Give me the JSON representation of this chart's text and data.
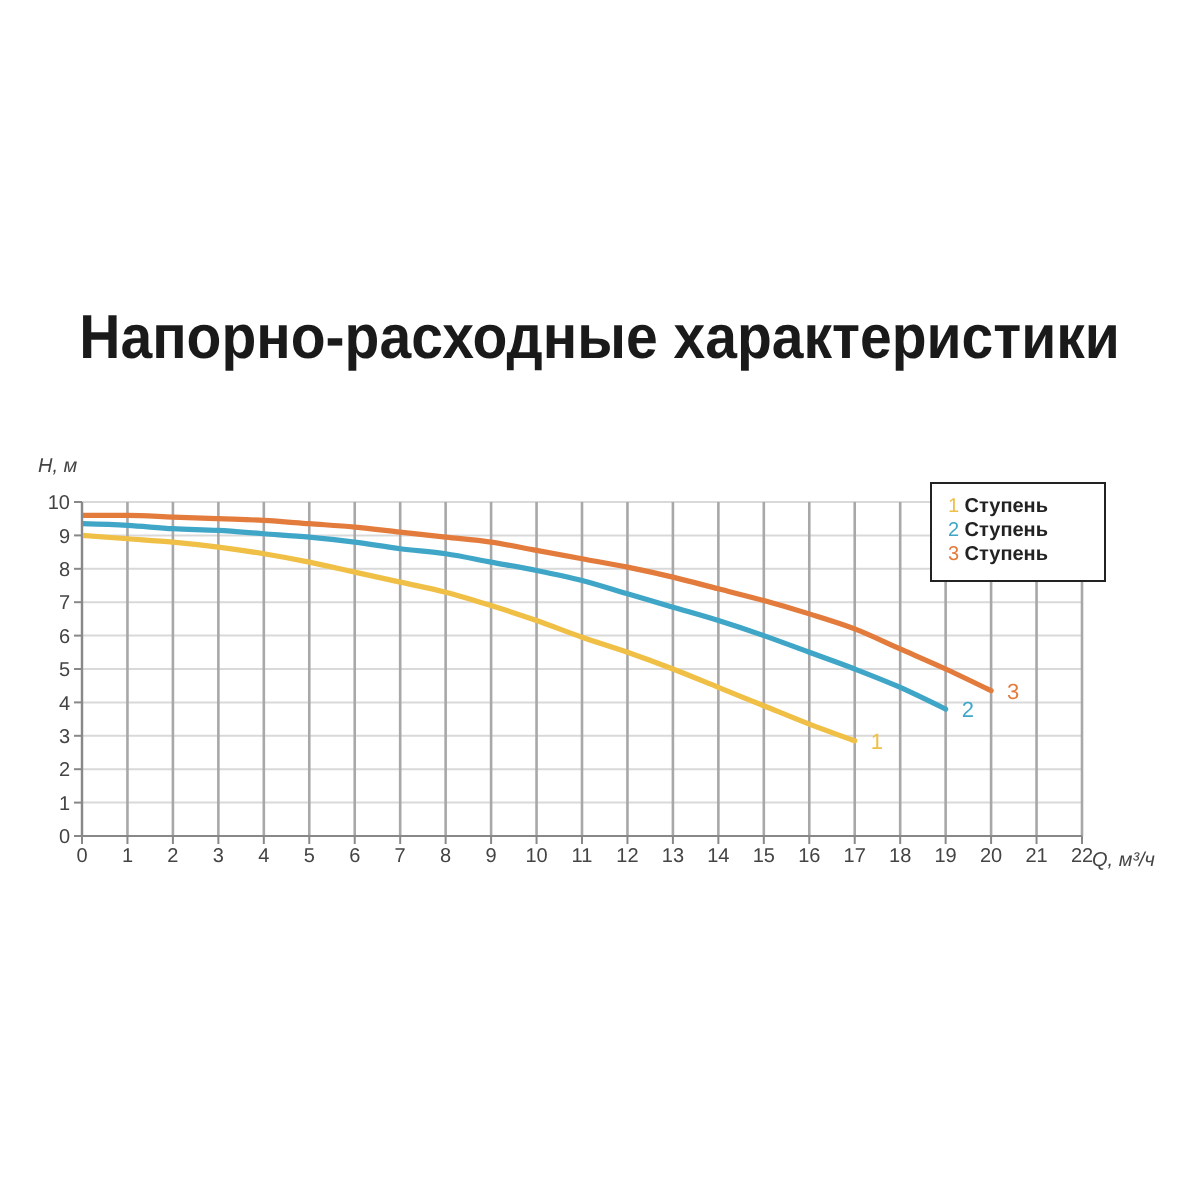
{
  "chart_data": {
    "type": "line",
    "title": "Напорно-расходные характеристики",
    "xlabel": "Q, м³/ч",
    "ylabel": "H, м",
    "series": [
      {
        "name": "1 Ступень",
        "color": "#f0bf45",
        "x": [
          0,
          1,
          2,
          3,
          4,
          5,
          6,
          7,
          8,
          9,
          10,
          11,
          12,
          13,
          14,
          15,
          16,
          17
        ],
        "values": [
          9.0,
          8.9,
          8.8,
          8.65,
          8.45,
          8.2,
          7.9,
          7.6,
          7.3,
          6.9,
          6.45,
          5.95,
          5.5,
          5.0,
          4.45,
          3.9,
          3.35,
          2.85
        ]
      },
      {
        "name": "2 Ступень",
        "color": "#3fa6c8",
        "x": [
          0,
          1,
          2,
          3,
          4,
          5,
          6,
          7,
          8,
          9,
          10,
          11,
          12,
          13,
          14,
          15,
          16,
          17,
          18,
          19
        ],
        "values": [
          9.35,
          9.3,
          9.2,
          9.15,
          9.05,
          8.95,
          8.8,
          8.6,
          8.45,
          8.2,
          7.95,
          7.65,
          7.25,
          6.85,
          6.45,
          6.0,
          5.5,
          5.0,
          4.45,
          3.8
        ]
      },
      {
        "name": "3 Ступень",
        "color": "#e27b3b",
        "x": [
          0,
          1,
          2,
          3,
          4,
          5,
          6,
          7,
          8,
          9,
          10,
          11,
          12,
          13,
          14,
          15,
          16,
          17,
          18,
          19,
          20
        ],
        "values": [
          9.6,
          9.6,
          9.55,
          9.5,
          9.45,
          9.35,
          9.25,
          9.1,
          8.95,
          8.8,
          8.55,
          8.3,
          8.05,
          7.75,
          7.4,
          7.05,
          6.65,
          6.2,
          5.6,
          5.0,
          4.35
        ]
      }
    ],
    "xlim": [
      0,
      22
    ],
    "xticks": [
      0,
      1,
      2,
      3,
      4,
      5,
      6,
      7,
      8,
      9,
      10,
      11,
      12,
      13,
      14,
      15,
      16,
      17,
      18,
      19,
      20,
      21,
      22
    ],
    "ylim": [
      0,
      10
    ],
    "yticks": [
      0,
      1,
      2,
      3,
      4,
      5,
      6,
      7,
      8,
      9,
      10
    ],
    "grid": true,
    "legend": "top right",
    "marker": "none",
    "line_style": "solid",
    "annotations": [
      {
        "text": "1",
        "x": 17,
        "y": 2.85
      },
      {
        "text": "2",
        "x": 19,
        "y": 3.8
      },
      {
        "text": "3",
        "x": 20,
        "y": 4.35
      }
    ]
  }
}
